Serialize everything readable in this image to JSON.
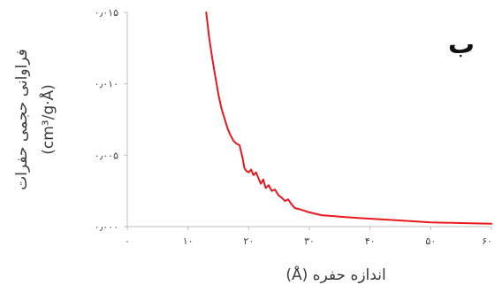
{
  "chart_data": {
    "type": "line",
    "panel_label": "ب",
    "xlabel": "اندازه حفره (Å)",
    "ylabel_line1": "فراوانی حجمی حفرات",
    "ylabel_line2": "(cm³/g·Å)",
    "xlim": [
      0,
      60
    ],
    "ylim": [
      0,
      0.015
    ],
    "x_ticks": [
      {
        "value": 0,
        "label": "۰"
      },
      {
        "value": 10,
        "label": "۱۰"
      },
      {
        "value": 20,
        "label": "۲۰"
      },
      {
        "value": 30,
        "label": "۳۰"
      },
      {
        "value": 40,
        "label": "۴۰"
      },
      {
        "value": 50,
        "label": "۵۰"
      },
      {
        "value": 60,
        "label": "۶۰"
      }
    ],
    "y_ticks": [
      {
        "value": 0,
        "label": "۰٫۰۰۰"
      },
      {
        "value": 0.005,
        "label": "۰٫۰۰۵"
      },
      {
        "value": 0.01,
        "label": "۰٫۰۱۰"
      },
      {
        "value": 0.015,
        "label": "۰٫۰۱۵"
      }
    ],
    "grid": false,
    "series": [
      {
        "color": "#e8191e",
        "points": [
          [
            13.0,
            0.015
          ],
          [
            13.5,
            0.0132
          ],
          [
            14.0,
            0.0118
          ],
          [
            14.5,
            0.0105
          ],
          [
            15.0,
            0.0093
          ],
          [
            15.5,
            0.0083
          ],
          [
            16.0,
            0.0076
          ],
          [
            16.5,
            0.0069
          ],
          [
            17.0,
            0.0064
          ],
          [
            17.5,
            0.006
          ],
          [
            18.0,
            0.0058
          ],
          [
            18.5,
            0.0057
          ],
          [
            19.0,
            0.0048
          ],
          [
            19.3,
            0.0041
          ],
          [
            19.6,
            0.0039
          ],
          [
            20.0,
            0.0038
          ],
          [
            20.4,
            0.004
          ],
          [
            20.8,
            0.0036
          ],
          [
            21.2,
            0.0038
          ],
          [
            21.6,
            0.0034
          ],
          [
            22.0,
            0.003
          ],
          [
            22.4,
            0.0033
          ],
          [
            22.8,
            0.0027
          ],
          [
            23.3,
            0.0029
          ],
          [
            23.8,
            0.0025
          ],
          [
            24.3,
            0.0026
          ],
          [
            24.9,
            0.0022
          ],
          [
            25.5,
            0.002
          ],
          [
            26.0,
            0.0018
          ],
          [
            26.5,
            0.0019
          ],
          [
            27.0,
            0.0016
          ],
          [
            27.6,
            0.0013
          ],
          [
            28.5,
            0.0012
          ],
          [
            30.0,
            0.001
          ],
          [
            32.0,
            0.0008
          ],
          [
            35.0,
            0.0007
          ],
          [
            38.0,
            0.0006
          ],
          [
            42.0,
            0.0005
          ],
          [
            46.0,
            0.0004
          ],
          [
            50.0,
            0.0003
          ],
          [
            55.0,
            0.00025
          ],
          [
            60.0,
            0.0002
          ]
        ]
      }
    ]
  }
}
